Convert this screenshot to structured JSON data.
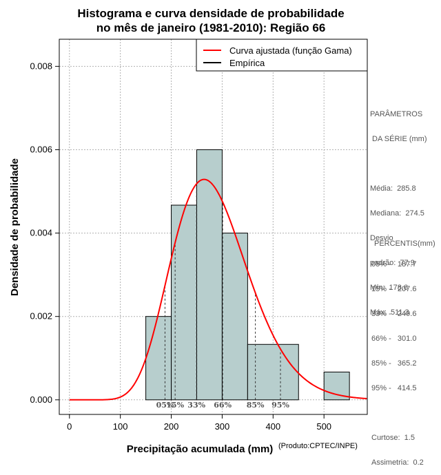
{
  "chart_data": {
    "type": "bar",
    "title_lines": [
      "Histograma e curva densidade de probabilidade",
      "no mês de janeiro (1981-2010): Região 66"
    ],
    "xlabel": "Precipitação acumulada (mm)",
    "credit": "(Produto:CPTEC/INPE)",
    "ylabel": "Densidade de probabilidade",
    "xlim": [
      -20,
      585
    ],
    "ylim": [
      -0.00035,
      0.00865
    ],
    "x_ticks": [
      0,
      100,
      200,
      300,
      400,
      500
    ],
    "y_ticks": [
      0.0,
      0.002,
      0.004,
      0.006,
      0.008
    ],
    "y_tick_labels": [
      "0.000",
      "0.002",
      "0.004",
      "0.006",
      "0.008"
    ],
    "grid": true,
    "histogram": [
      {
        "x0": 150,
        "x1": 200,
        "density": 0.002
      },
      {
        "x0": 200,
        "x1": 250,
        "density": 0.00467
      },
      {
        "x0": 250,
        "x1": 300,
        "density": 0.006
      },
      {
        "x0": 300,
        "x1": 350,
        "density": 0.004
      },
      {
        "x0": 350,
        "x1": 450,
        "density": 0.00133
      },
      {
        "x0": 500,
        "x1": 550,
        "density": 0.000667
      }
    ],
    "gamma_fit": {
      "shape": 13.46,
      "scale": 21.23,
      "color": "#ff0000"
    },
    "percentile_markers": [
      {
        "label": "05%",
        "value": 187.7
      },
      {
        "label": "15%",
        "value": 207.6
      },
      {
        "label": "33%",
        "value": 249.6
      },
      {
        "label": "66%",
        "value": 301.0
      },
      {
        "label": "85%",
        "value": 365.2
      },
      {
        "label": "95%",
        "value": 414.5
      }
    ],
    "legend": {
      "position": "top-right",
      "entries": [
        {
          "label": "Curva ajustada (função Gama)",
          "color": "#ff0000"
        },
        {
          "label": "Empírica",
          "color": "#000000"
        }
      ]
    },
    "bar_fill": "#b7cecd"
  },
  "side_panel": {
    "parametros_title": [
      "PARÂMETROS",
      " DA SÉRIE (mm)"
    ],
    "parametros": [
      "Média:  285.8",
      "Mediana:  274.5",
      "Desvio",
      "padrão:  77.9",
      "Mín:  178.6",
      "Máx:  511.3"
    ],
    "percentis_title": "PERCENTIS(mm)",
    "percentis": [
      "05% -   187.7",
      "15% -   207.6",
      "33% -   249.6",
      "66% -   301.0",
      "85% -   365.2",
      "95% -   414.5"
    ],
    "extras": [
      "Curtose:  1.5",
      "Assimetria:  0.2"
    ]
  }
}
